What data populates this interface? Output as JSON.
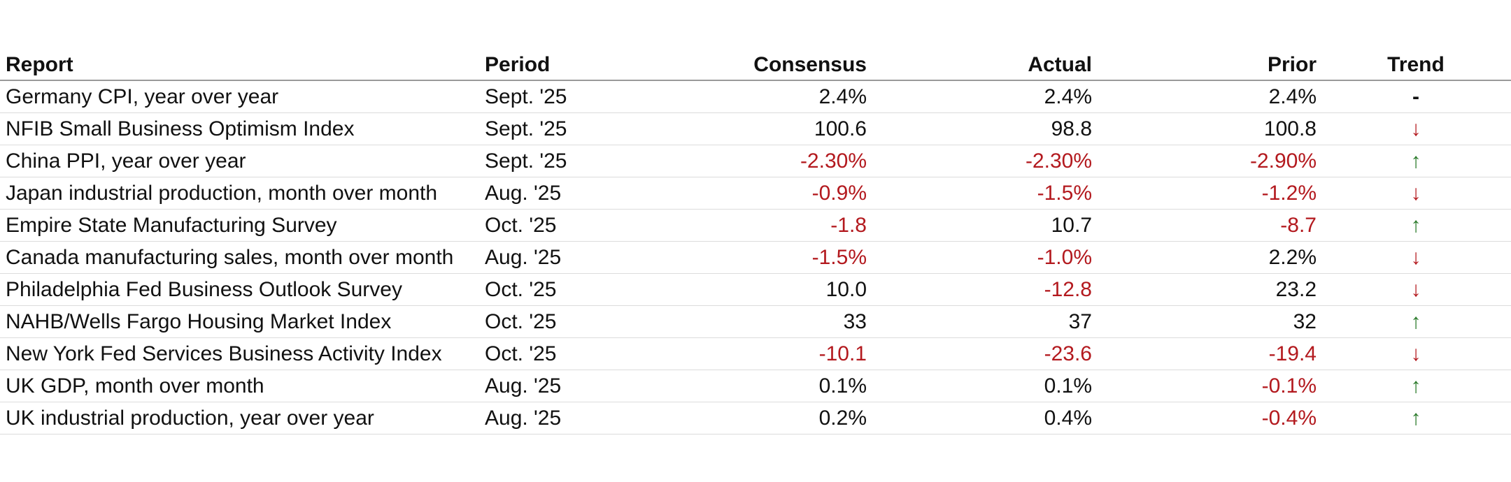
{
  "table": {
    "columns": [
      "Report",
      "Period",
      "Consensus",
      "Actual",
      "Prior",
      "Trend"
    ],
    "rows": [
      {
        "report": "Germany CPI, year over year",
        "period": "Sept. '25",
        "consensus": "2.4%",
        "actual": "2.4%",
        "prior": "2.4%",
        "trend": {
          "symbol": "-",
          "color": "#111111"
        }
      },
      {
        "report": "NFIB Small Business Optimism Index",
        "period": "Sept. '25",
        "consensus": "100.6",
        "actual": "98.8",
        "prior": "100.8",
        "trend": {
          "symbol": "↓",
          "color": "#b3191e"
        }
      },
      {
        "report": "China PPI, year over year",
        "period": "Sept. '25",
        "consensus": "-2.30%",
        "actual": "-2.30%",
        "prior": "-2.90%",
        "trend": {
          "symbol": "↑",
          "color": "#2a7a2a"
        }
      },
      {
        "report": "Japan industrial production, month over month",
        "period": "Aug. '25",
        "consensus": "-0.9%",
        "actual": "-1.5%",
        "prior": "-1.2%",
        "trend": {
          "symbol": "↓",
          "color": "#b3191e"
        }
      },
      {
        "report": "Empire State Manufacturing Survey",
        "period": "Oct. '25",
        "consensus": "-1.8",
        "actual": "10.7",
        "prior": "-8.7",
        "trend": {
          "symbol": "↑",
          "color": "#2a7a2a"
        }
      },
      {
        "report": "Canada manufacturing sales, month over month",
        "period": "Aug. '25",
        "consensus": "-1.5%",
        "actual": "-1.0%",
        "prior": "2.2%",
        "trend": {
          "symbol": "↓",
          "color": "#b3191e"
        }
      },
      {
        "report": "Philadelphia Fed Business Outlook Survey",
        "period": "Oct. '25",
        "consensus": "10.0",
        "actual": "-12.8",
        "prior": "23.2",
        "trend": {
          "symbol": "↓",
          "color": "#b3191e"
        }
      },
      {
        "report": "NAHB/Wells Fargo Housing Market Index",
        "period": "Oct. '25",
        "consensus": "33",
        "actual": "37",
        "prior": "32",
        "trend": {
          "symbol": "↑",
          "color": "#2a7a2a"
        }
      },
      {
        "report": "New York Fed Services Business Activity Index",
        "period": "Oct. '25",
        "consensus": "-10.1",
        "actual": "-23.6",
        "prior": "-19.4",
        "trend": {
          "symbol": "↓",
          "color": "#b3191e"
        }
      },
      {
        "report": "UK GDP, month over month",
        "period": "Aug. '25",
        "consensus": "0.1%",
        "actual": "0.1%",
        "prior": "-0.1%",
        "trend": {
          "symbol": "↑",
          "color": "#2a7a2a"
        }
      },
      {
        "report": "UK industrial production, year over year",
        "period": "Aug. '25",
        "consensus": "0.2%",
        "actual": "0.4%",
        "prior": "-0.4%",
        "trend": {
          "symbol": "↑",
          "color": "#2a7a2a"
        }
      }
    ],
    "negative_color": "#b3191e"
  }
}
